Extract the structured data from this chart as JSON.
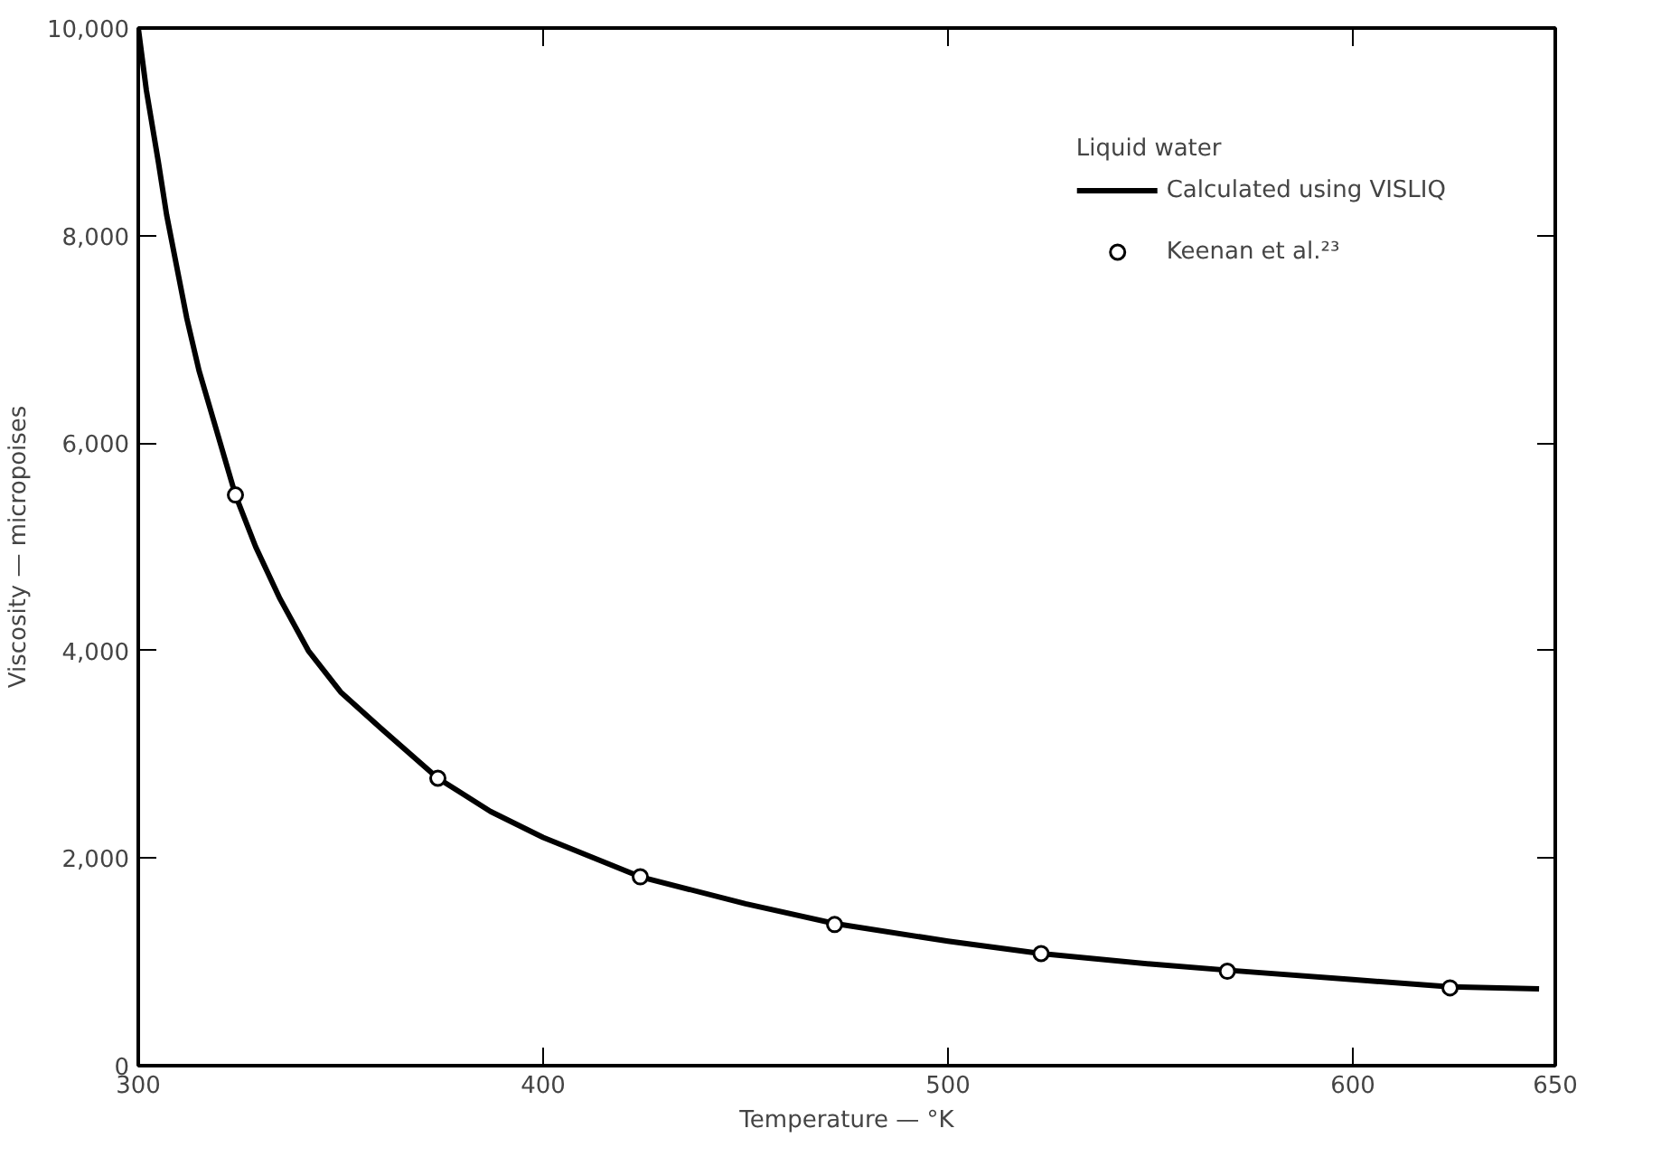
{
  "chart_data": {
    "type": "line",
    "xlabel": "Temperature — °K",
    "ylabel": "Viscosity — micropoises",
    "legend_title": "Liquid water",
    "xlim": [
      300,
      650
    ],
    "xticks": [
      300,
      400,
      500,
      600,
      650
    ],
    "ylim": [
      0,
      10000
    ],
    "yticks": [
      0,
      {
        "value": 2000,
        "label": "2,000"
      },
      {
        "value": 4000,
        "label": "4,000"
      },
      {
        "value": 6000,
        "label": "6,000"
      },
      {
        "value": 8000,
        "label": "8,000"
      },
      {
        "value": 10000,
        "label": "10,000"
      }
    ],
    "grid": false,
    "legend": "top right",
    "series": [
      {
        "name": "Calculated using VISLIQ",
        "color": "#000000",
        "marker": "none",
        "line_style": "solid",
        "x": [
          300,
          302,
          305,
          307,
          310,
          312,
          315,
          318,
          324,
          329,
          335,
          342,
          350,
          360,
          374,
          387,
          400,
          424,
          450,
          472,
          500,
          523,
          550,
          569,
          600,
          624,
          646
        ],
        "values": [
          10000,
          9400,
          8700,
          8200,
          7600,
          7200,
          6700,
          6300,
          5500,
          5000,
          4500,
          4000,
          3600,
          3250,
          2770,
          2450,
          2200,
          1820,
          1560,
          1370,
          1200,
          1080,
          980,
          920,
          830,
          760,
          740
        ]
      },
      {
        "name": "Keenan et al.²³",
        "type": "scatter",
        "color": "#000000",
        "marker": "circle",
        "x": [
          324,
          374,
          424,
          472,
          523,
          569,
          624
        ],
        "values": [
          5500,
          2770,
          1820,
          1360,
          1080,
          910,
          750
        ]
      }
    ]
  }
}
